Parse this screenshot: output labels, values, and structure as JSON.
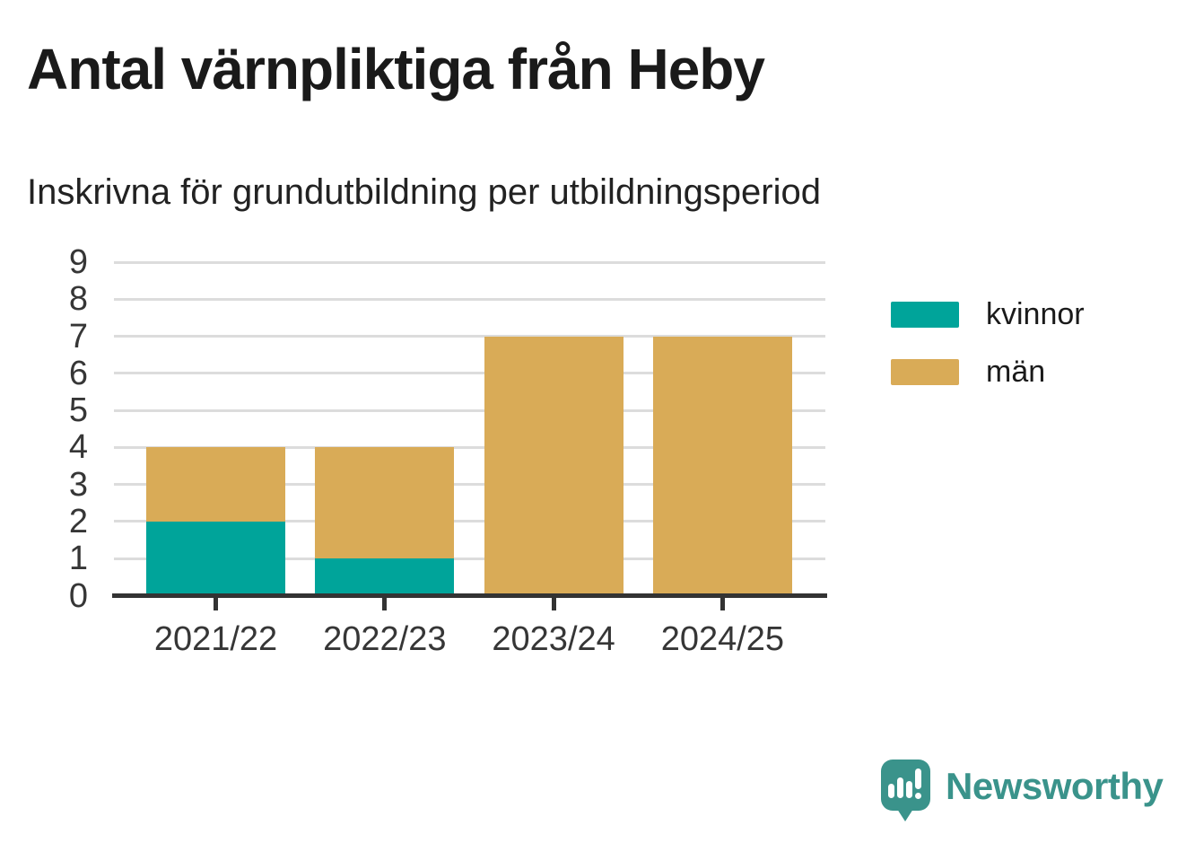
{
  "title": "Antal värnpliktiga från Heby",
  "subtitle": "Inskrivna för grundutbildning per utbildningsperiod",
  "branding": {
    "name": "Newsworthy",
    "icon": "newsworthy-speech-bubble-barchart-icon",
    "color": "#3a938b"
  },
  "colors": {
    "kvinnor": "#00a49a",
    "man": "#d9ab57",
    "axis": "#333333",
    "grid": "#dcdcdc",
    "title_text": "#1a1a1a",
    "tick_text": "#363636",
    "background": "#ffffff"
  },
  "chart_data": {
    "type": "bar",
    "stacked": true,
    "title": "Antal värnpliktiga från Heby",
    "subtitle": "Inskrivna för grundutbildning per utbildningsperiod",
    "categories": [
      "2021/22",
      "2022/23",
      "2023/24",
      "2024/25"
    ],
    "series": [
      {
        "name": "kvinnor",
        "color": "#00a49a",
        "values": [
          2,
          1,
          0,
          0
        ]
      },
      {
        "name": "män",
        "color": "#d9ab57",
        "values": [
          2,
          3,
          7,
          7
        ]
      }
    ],
    "totals": [
      4,
      4,
      7,
      7
    ],
    "xlabel": "",
    "ylabel": "",
    "ylim": [
      0,
      9
    ],
    "yticks": [
      0,
      1,
      2,
      3,
      4,
      5,
      6,
      7,
      8,
      9
    ],
    "grid": true,
    "legend_position": "right"
  }
}
